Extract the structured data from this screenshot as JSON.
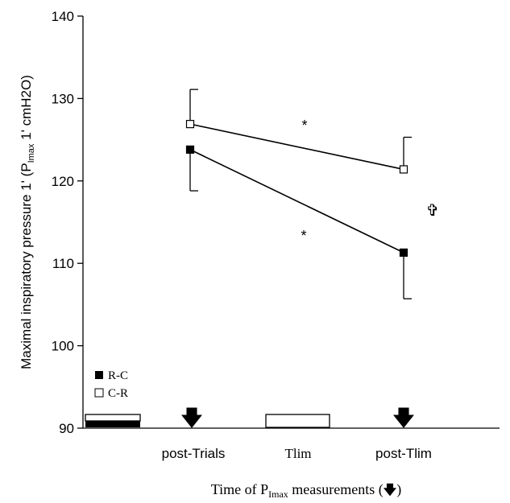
{
  "chart_data": {
    "type": "line",
    "ylabel_main": "Maximal inspiratory pressure 1' (P",
    "ylabel_sub": "Imax",
    "ylabel_tail": " 1' cmH2O)",
    "xlabel_main": "Time of P",
    "xlabel_sub": "Imax",
    "xlabel_tail": " measurements (",
    "ylim": [
      90,
      140
    ],
    "yticks": [
      "90",
      "100",
      "110",
      "120",
      "130",
      "140"
    ],
    "xticks": [
      "post-Trials",
      "Tlim",
      "post-Tlim"
    ],
    "x": [
      "post-Trials",
      "post-Tlim"
    ],
    "series": [
      {
        "name": "R-C",
        "marker": "filled-square",
        "values": [
          123.8,
          111.3
        ],
        "errors_down": [
          5.0,
          5.6
        ],
        "errors_up": [
          0,
          0
        ]
      },
      {
        "name": "C-R",
        "marker": "open-square",
        "values": [
          126.9,
          121.4
        ],
        "errors_down": [
          0,
          0
        ],
        "errors_up": [
          4.2,
          3.9
        ]
      }
    ],
    "annotations": {
      "asterisk_upper": "*",
      "asterisk_lower": "*",
      "dagger": "✞"
    },
    "arrow_glyph": "🡇",
    "grid": false,
    "legend_position": "bottom-left"
  },
  "colors": {
    "ink": "#000000",
    "background": "#ffffff"
  }
}
